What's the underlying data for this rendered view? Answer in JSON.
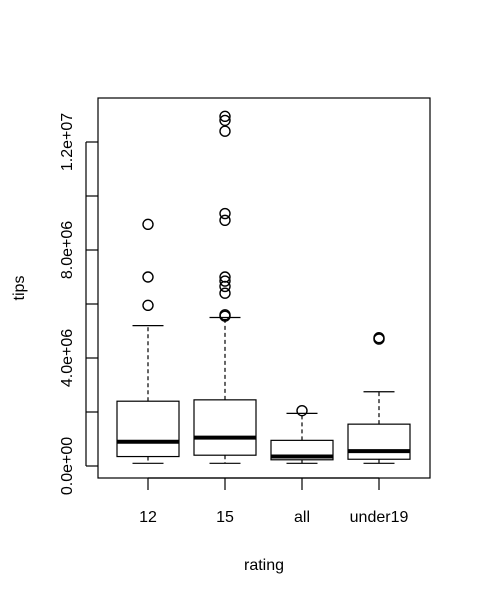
{
  "chart_data": {
    "type": "box",
    "title": "",
    "xlabel": "rating",
    "ylabel": "tips",
    "categories": [
      "12",
      "15",
      "all",
      "under19"
    ],
    "ylim": [
      -400000,
      12750000
    ],
    "yticks": [
      0,
      2000000,
      4000000,
      6000000,
      8000000,
      10000000,
      12000000
    ],
    "ytick_labels": [
      "0.0e+00",
      "",
      "4.0e+06",
      "",
      "8.0e+06",
      "",
      "1.2e+07"
    ],
    "grid": false,
    "boxes": [
      {
        "category": "12",
        "whisker_low": 100000,
        "q1": 350000,
        "median": 900000,
        "q3": 2400000,
        "whisker_high": 5200000,
        "outliers": [
          5950000,
          7000000,
          8950000
        ]
      },
      {
        "category": "15",
        "whisker_low": 100000,
        "q1": 400000,
        "median": 1050000,
        "q3": 2450000,
        "whisker_high": 5500000,
        "outliers": [
          5550000,
          5600000,
          6400000,
          6650000,
          6850000,
          7000000,
          9100000,
          9350000,
          12400000,
          12800000,
          12950000
        ]
      },
      {
        "category": "all",
        "whisker_low": 100000,
        "q1": 230000,
        "median": 350000,
        "q3": 950000,
        "whisker_high": 1950000,
        "outliers": [
          2050000
        ]
      },
      {
        "category": "under19",
        "whisker_low": 100000,
        "q1": 250000,
        "median": 550000,
        "q3": 1550000,
        "whisker_high": 2750000,
        "outliers": [
          4700000,
          4750000
        ]
      }
    ]
  }
}
